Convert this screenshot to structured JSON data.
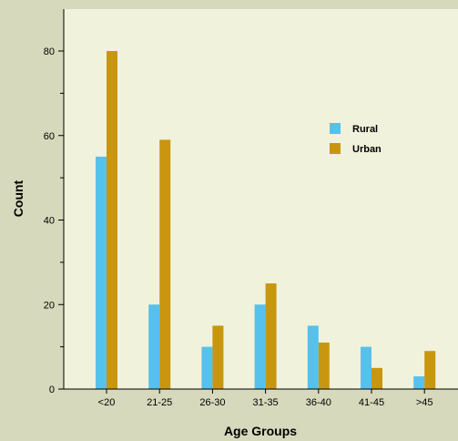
{
  "chart_data": {
    "type": "bar",
    "categories": [
      "<20",
      "21-25",
      "26-30",
      "31-35",
      "36-40",
      "41-45",
      ">45"
    ],
    "series": [
      {
        "name": "Rural",
        "values": [
          55,
          20,
          10,
          20,
          15,
          10,
          3
        ],
        "color": "#56c1ec"
      },
      {
        "name": "Urban",
        "values": [
          80,
          59,
          15,
          25,
          11,
          5,
          9
        ],
        "color": "#c8960f"
      }
    ],
    "xlabel": "Age Groups",
    "ylabel": "Count",
    "ylim": [
      0,
      80
    ],
    "yticks": [
      0,
      20,
      40,
      60,
      80
    ],
    "legend_position": "top-right",
    "grid": false
  },
  "colors": {
    "figure_background": "#d6d9bb",
    "plot_background": "#f0f2dc"
  }
}
